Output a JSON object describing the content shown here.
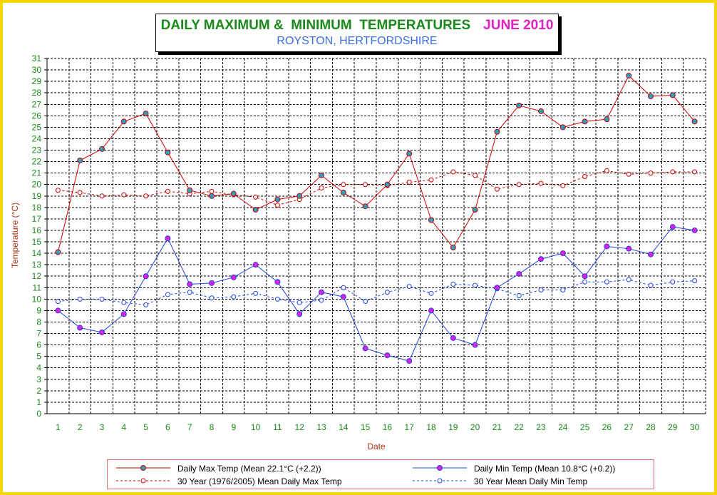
{
  "title": {
    "main": "DAILY MAXIMUM &  MINIMUM  TEMPERATURES",
    "month": "JUNE 2010",
    "subtitle": "ROYSTON, HERTFORDSHIRE"
  },
  "colors": {
    "frame": "#f5d400",
    "title": "#1a8a1a",
    "month": "#e020c0",
    "subtitle": "#3a6fe0",
    "max": "#cc0000",
    "min": "#2040e0",
    "marker_fill_max": "#2aa0c0",
    "marker_fill_min": "#e020e0",
    "axis_labels": "#1a8a1a",
    "axis_titles": "#b03010"
  },
  "chart_data": {
    "type": "line",
    "title": "DAILY MAXIMUM &  MINIMUM  TEMPERATURES",
    "subtitle": "ROYSTON, HERTFORDSHIRE",
    "xlabel": "Date",
    "ylabel": "Temperature (°C)",
    "ylim": [
      0,
      31
    ],
    "grid": true,
    "legend_position": "bottom",
    "x": [
      1,
      2,
      3,
      4,
      5,
      6,
      7,
      8,
      9,
      10,
      11,
      12,
      13,
      14,
      15,
      16,
      17,
      18,
      19,
      20,
      21,
      22,
      23,
      24,
      25,
      26,
      27,
      28,
      29,
      30
    ],
    "yticks": [
      "0",
      "1",
      "2",
      "3",
      "4",
      "5",
      "6",
      "7",
      "8",
      "9",
      "10",
      "11",
      "12",
      "13",
      "14",
      "15",
      "16",
      "17",
      "18",
      "19",
      "20",
      "21",
      "22",
      "23",
      "24",
      "25",
      "26",
      "27",
      "28",
      "29",
      "30",
      "31"
    ],
    "series": [
      {
        "name": "Daily Max Temp (Mean 22.1°C (+2.2))",
        "style": "solid",
        "color": "#cc0000",
        "values": [
          14.1,
          22.1,
          23.1,
          25.5,
          26.2,
          22.8,
          19.5,
          19.0,
          19.2,
          17.8,
          18.7,
          19.0,
          20.8,
          19.3,
          18.1,
          20.0,
          22.7,
          16.9,
          14.5,
          17.8,
          24.6,
          26.9,
          26.4,
          25.0,
          25.5,
          25.7,
          29.5,
          27.7,
          27.8,
          25.5
        ]
      },
      {
        "name": "Daily Min Temp (Mean 10.8°C (+0.2))",
        "style": "solid",
        "color": "#2040e0",
        "values": [
          9.0,
          7.5,
          7.1,
          8.7,
          12.0,
          15.3,
          11.3,
          11.4,
          11.9,
          13.0,
          11.5,
          8.7,
          10.6,
          10.2,
          5.7,
          5.1,
          4.6,
          9.0,
          6.6,
          6.0,
          11.0,
          12.2,
          13.5,
          14.0,
          12.0,
          14.6,
          14.4,
          13.9,
          16.3,
          16.0
        ]
      },
      {
        "name": "30 Year (1976/2005) Mean Daily Max Temp",
        "style": "dashed",
        "color": "#cc0000",
        "values": [
          19.5,
          19.3,
          19.0,
          19.1,
          19.0,
          19.4,
          19.2,
          19.4,
          19.1,
          18.9,
          18.2,
          18.7,
          19.7,
          20.0,
          20.0,
          19.9,
          20.2,
          20.4,
          21.1,
          20.8,
          19.6,
          20.0,
          20.1,
          19.9,
          20.7,
          21.2,
          20.9,
          21.0,
          21.1,
          21.1
        ]
      },
      {
        "name": "30 Year Mean Daily Min Temp",
        "style": "dashed",
        "color": "#2040e0",
        "values": [
          9.8,
          10.0,
          10.0,
          9.7,
          9.5,
          10.4,
          10.6,
          10.1,
          10.2,
          10.5,
          10.0,
          9.7,
          9.9,
          11.0,
          9.8,
          10.6,
          11.1,
          10.5,
          11.3,
          11.2,
          10.9,
          10.3,
          10.8,
          10.8,
          11.5,
          11.5,
          11.7,
          11.2,
          11.5,
          11.6
        ]
      }
    ]
  }
}
